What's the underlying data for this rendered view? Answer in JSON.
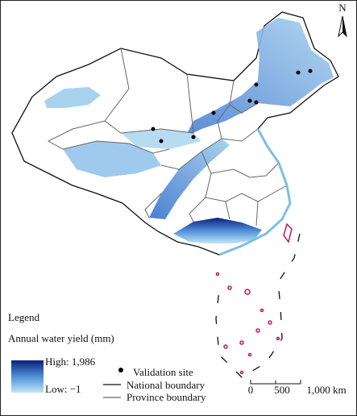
{
  "north_label": "N",
  "legend": {
    "title": "Legend",
    "subtitle": "Annual water yield (mm)",
    "high": "High: 1,986",
    "low": "Low: −1",
    "items": [
      "Validation site",
      "National boundary",
      "Province boundary"
    ]
  },
  "scale_bar": {
    "labels": [
      "0",
      "500",
      "1,000 km"
    ]
  }
}
